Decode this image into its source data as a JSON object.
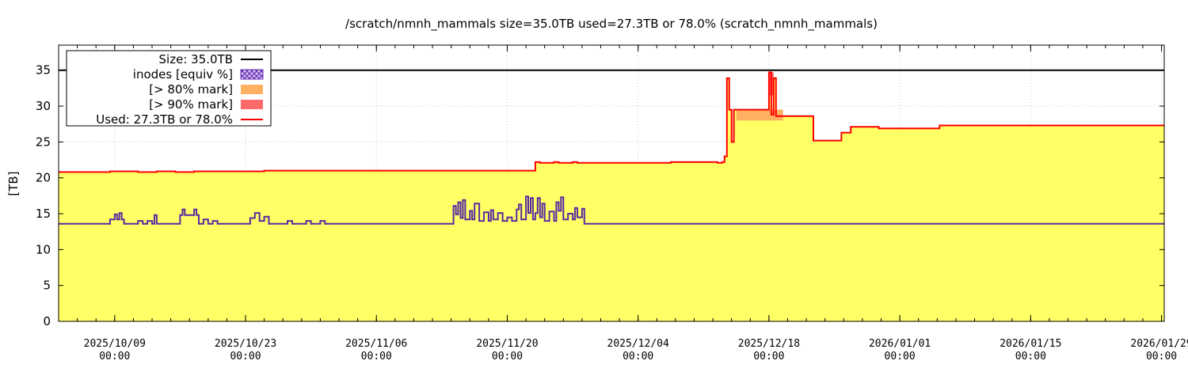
{
  "chart_data": {
    "type": "area",
    "title": "/scratch/nmnh_mammals size=35.0TB used=27.3TB or 78.0% (scratch_nmnh_mammals)",
    "ylabel": "[TB]",
    "xlabel": "",
    "ylim": [
      0,
      38.5
    ],
    "xlim": [
      "2025-10-03 00:00",
      "2026-01-29 07:00"
    ],
    "y_ticks": [
      "0",
      "5",
      "10",
      "15",
      "20",
      "25",
      "30",
      "35"
    ],
    "y_tick_values": [
      0,
      5,
      10,
      15,
      20,
      25,
      30,
      35
    ],
    "x_ticks": [
      {
        "date": "2025-10-09 00:00",
        "line1": "2025/10/09",
        "line2": "00:00"
      },
      {
        "date": "2025-10-23 00:00",
        "line1": "2025/10/23",
        "line2": "00:00"
      },
      {
        "date": "2025-11-06 00:00",
        "line1": "2025/11/06",
        "line2": "00:00"
      },
      {
        "date": "2025-11-20 00:00",
        "line1": "2025/11/20",
        "line2": "00:00"
      },
      {
        "date": "2025-12-04 00:00",
        "line1": "2025/12/04",
        "line2": "00:00"
      },
      {
        "date": "2025-12-18 00:00",
        "line1": "2025/12/18",
        "line2": "00:00"
      },
      {
        "date": "2026-01-01 00:00",
        "line1": "2026/01/01",
        "line2": "00:00"
      },
      {
        "date": "2026-01-15 00:00",
        "line1": "2026/01/15",
        "line2": "00:00"
      },
      {
        "date": "2026-01-29 00:00",
        "line1": "2026/01/29",
        "line2": "00:00"
      }
    ],
    "grid": true,
    "legend_position": "top-left",
    "legend": [
      {
        "label": "Size: 35.0TB",
        "kind": "line",
        "color": "#000000"
      },
      {
        "label": "inodes [equiv %]",
        "kind": "hatch",
        "color": "#6a2fb8"
      },
      {
        "label": "[> 80% mark]",
        "kind": "box",
        "color": "#ffb060"
      },
      {
        "label": "[> 90% mark]",
        "kind": "box",
        "color": "#ff6a6a"
      },
      {
        "label": "Used: 27.3TB or 78.0%",
        "kind": "line",
        "color": "#ff0000"
      }
    ],
    "colors": {
      "used_fill": "#ffff66",
      "used_line": "#ff0000",
      "size_line": "#000000",
      "inodes": "#5a2aa0",
      "mark80": "#ffb060",
      "mark90": "#ff6a6a"
    },
    "size_tb": 35.0,
    "series": [
      {
        "name": "Used: 27.3TB or 78.0%",
        "x": [
          "2025-10-03 00:00",
          "2025-10-08 00:00",
          "2025-10-08 12:00",
          "2025-10-11 00:00",
          "2025-10-11 12:00",
          "2025-10-13 00:00",
          "2025-10-13 12:00",
          "2025-10-15 00:00",
          "2025-10-15 12:00",
          "2025-10-17 00:00",
          "2025-10-17 12:00",
          "2025-10-19 00:00",
          "2025-10-19 12:00",
          "2025-10-25 00:00",
          "2025-11-21 12:00",
          "2025-11-23 00:00",
          "2025-11-23 12:00",
          "2025-11-25 00:00",
          "2025-11-25 12:00",
          "2025-11-27 00:00",
          "2025-11-27 12:00",
          "2025-11-30 00:00",
          "2025-12-07 00:00",
          "2025-12-07 12:00",
          "2025-12-12 00:00",
          "2025-12-12 12:00",
          "2025-12-13 00:00",
          "2025-12-13 06:00",
          "2025-12-13 12:00",
          "2025-12-13 18:00",
          "2025-12-14 00:00",
          "2025-12-14 06:00",
          "2025-12-14 12:00",
          "2025-12-14 18:00",
          "2025-12-17 12:00",
          "2025-12-18 00:00",
          "2025-12-18 06:00",
          "2025-12-18 12:00",
          "2025-12-18 18:00",
          "2025-12-19 00:00",
          "2025-12-19 06:00",
          "2025-12-19 12:00",
          "2025-12-22 12:00",
          "2025-12-22 18:00",
          "2025-12-25 12:00",
          "2025-12-25 18:00",
          "2025-12-26 12:00",
          "2025-12-26 18:00",
          "2025-12-29 12:00",
          "2025-12-29 18:00",
          "2026-01-05 00:00",
          "2026-01-05 06:00",
          "2026-01-29 07:00"
        ],
        "values": [
          20.8,
          20.8,
          20.9,
          20.9,
          20.8,
          20.8,
          20.9,
          20.9,
          20.8,
          20.8,
          20.9,
          20.9,
          20.9,
          21.0,
          21.0,
          22.2,
          22.1,
          22.2,
          22.1,
          22.2,
          22.1,
          22.1,
          22.1,
          22.2,
          22.2,
          22.1,
          22.2,
          23.0,
          33.9,
          29.5,
          25.0,
          29.5,
          29.5,
          29.5,
          29.5,
          34.7,
          28.8,
          33.9,
          28.6,
          28.6,
          28.6,
          28.6,
          28.6,
          25.2,
          25.2,
          26.3,
          26.3,
          27.1,
          27.1,
          26.9,
          26.9,
          27.3,
          27.3
        ]
      },
      {
        "name": "inodes [equiv %]",
        "x": [
          "2025-10-03 00:00",
          "2025-10-08 12:00",
          "2025-10-09 00:00",
          "2025-10-09 06:00",
          "2025-10-09 12:00",
          "2025-10-09 18:00",
          "2025-10-10 00:00",
          "2025-10-11 00:00",
          "2025-10-11 12:00",
          "2025-10-12 00:00",
          "2025-10-12 12:00",
          "2025-10-13 00:00",
          "2025-10-13 06:00",
          "2025-10-13 12:00",
          "2025-10-15 12:00",
          "2025-10-16 00:00",
          "2025-10-16 06:00",
          "2025-10-16 12:00",
          "2025-10-17 12:00",
          "2025-10-17 18:00",
          "2025-10-18 00:00",
          "2025-10-18 12:00",
          "2025-10-19 00:00",
          "2025-10-19 12:00",
          "2025-10-20 00:00",
          "2025-10-23 00:00",
          "2025-10-23 12:00",
          "2025-10-24 00:00",
          "2025-10-24 12:00",
          "2025-10-25 00:00",
          "2025-10-25 12:00",
          "2025-10-26 00:00",
          "2025-10-27 12:00",
          "2025-10-28 00:00",
          "2025-10-28 12:00",
          "2025-10-29 12:00",
          "2025-10-30 00:00",
          "2025-10-30 12:00",
          "2025-10-31 00:00",
          "2025-10-31 12:00",
          "2025-11-01 00:00",
          "2025-11-14 00:00",
          "2025-11-14 06:00",
          "2025-11-14 12:00",
          "2025-11-14 18:00",
          "2025-11-15 00:00",
          "2025-11-15 06:00",
          "2025-11-15 12:00",
          "2025-11-16 00:00",
          "2025-11-16 06:00",
          "2025-11-16 12:00",
          "2025-11-17 00:00",
          "2025-11-17 12:00",
          "2025-11-18 00:00",
          "2025-11-18 06:00",
          "2025-11-18 12:00",
          "2025-11-19 00:00",
          "2025-11-19 12:00",
          "2025-11-20 00:00",
          "2025-11-20 12:00",
          "2025-11-21 00:00",
          "2025-11-21 06:00",
          "2025-11-21 12:00",
          "2025-11-22 00:00",
          "2025-11-22 06:00",
          "2025-11-22 12:00",
          "2025-11-22 18:00",
          "2025-11-23 00:00",
          "2025-11-23 06:00",
          "2025-11-23 12:00",
          "2025-11-23 18:00",
          "2025-11-24 00:00",
          "2025-11-24 12:00",
          "2025-11-25 00:00",
          "2025-11-25 06:00",
          "2025-11-25 12:00",
          "2025-11-25 18:00",
          "2025-11-26 00:00",
          "2025-11-26 12:00",
          "2025-11-27 00:00",
          "2025-11-27 06:00",
          "2025-11-27 12:00",
          "2025-11-28 00:00",
          "2025-11-28 06:00",
          "2025-11-29 07:00",
          "2026-01-29 07:00"
        ],
        "values": [
          13.6,
          14.2,
          14.9,
          14.2,
          15.1,
          14.2,
          13.6,
          13.6,
          14.0,
          13.6,
          14.0,
          13.6,
          14.8,
          13.6,
          13.6,
          14.8,
          15.6,
          14.8,
          15.6,
          14.8,
          13.6,
          14.2,
          13.6,
          14.0,
          13.6,
          13.6,
          14.4,
          15.1,
          14.0,
          14.6,
          13.6,
          13.6,
          14.0,
          13.6,
          13.6,
          14.0,
          13.6,
          13.6,
          14.0,
          13.6,
          13.6,
          13.6,
          16.1,
          14.9,
          16.6,
          14.4,
          16.9,
          14.2,
          15.4,
          14.2,
          16.4,
          14.0,
          15.2,
          14.0,
          15.5,
          14.2,
          15.1,
          14.0,
          14.5,
          14.0,
          15.6,
          16.3,
          14.2,
          17.4,
          15.1,
          17.2,
          14.2,
          15.1,
          17.2,
          14.5,
          16.4,
          14.0,
          15.3,
          14.0,
          16.6,
          15.4,
          17.3,
          14.2,
          15.0,
          14.2,
          15.8,
          14.5,
          15.7,
          13.6,
          13.6,
          13.6
        ]
      }
    ],
    "bands": [
      {
        "name": "[> 80% mark]",
        "x_from": "2025-12-14 12:00",
        "x_to": "2025-12-19 12:00",
        "from_value": 28.0,
        "to_value": 29.5
      },
      {
        "name": "[> 90% mark]",
        "x_from": "2025-12-18 00:00",
        "x_to": "2025-12-18 12:00",
        "from_value": 31.5,
        "to_value": 34.7
      }
    ]
  }
}
